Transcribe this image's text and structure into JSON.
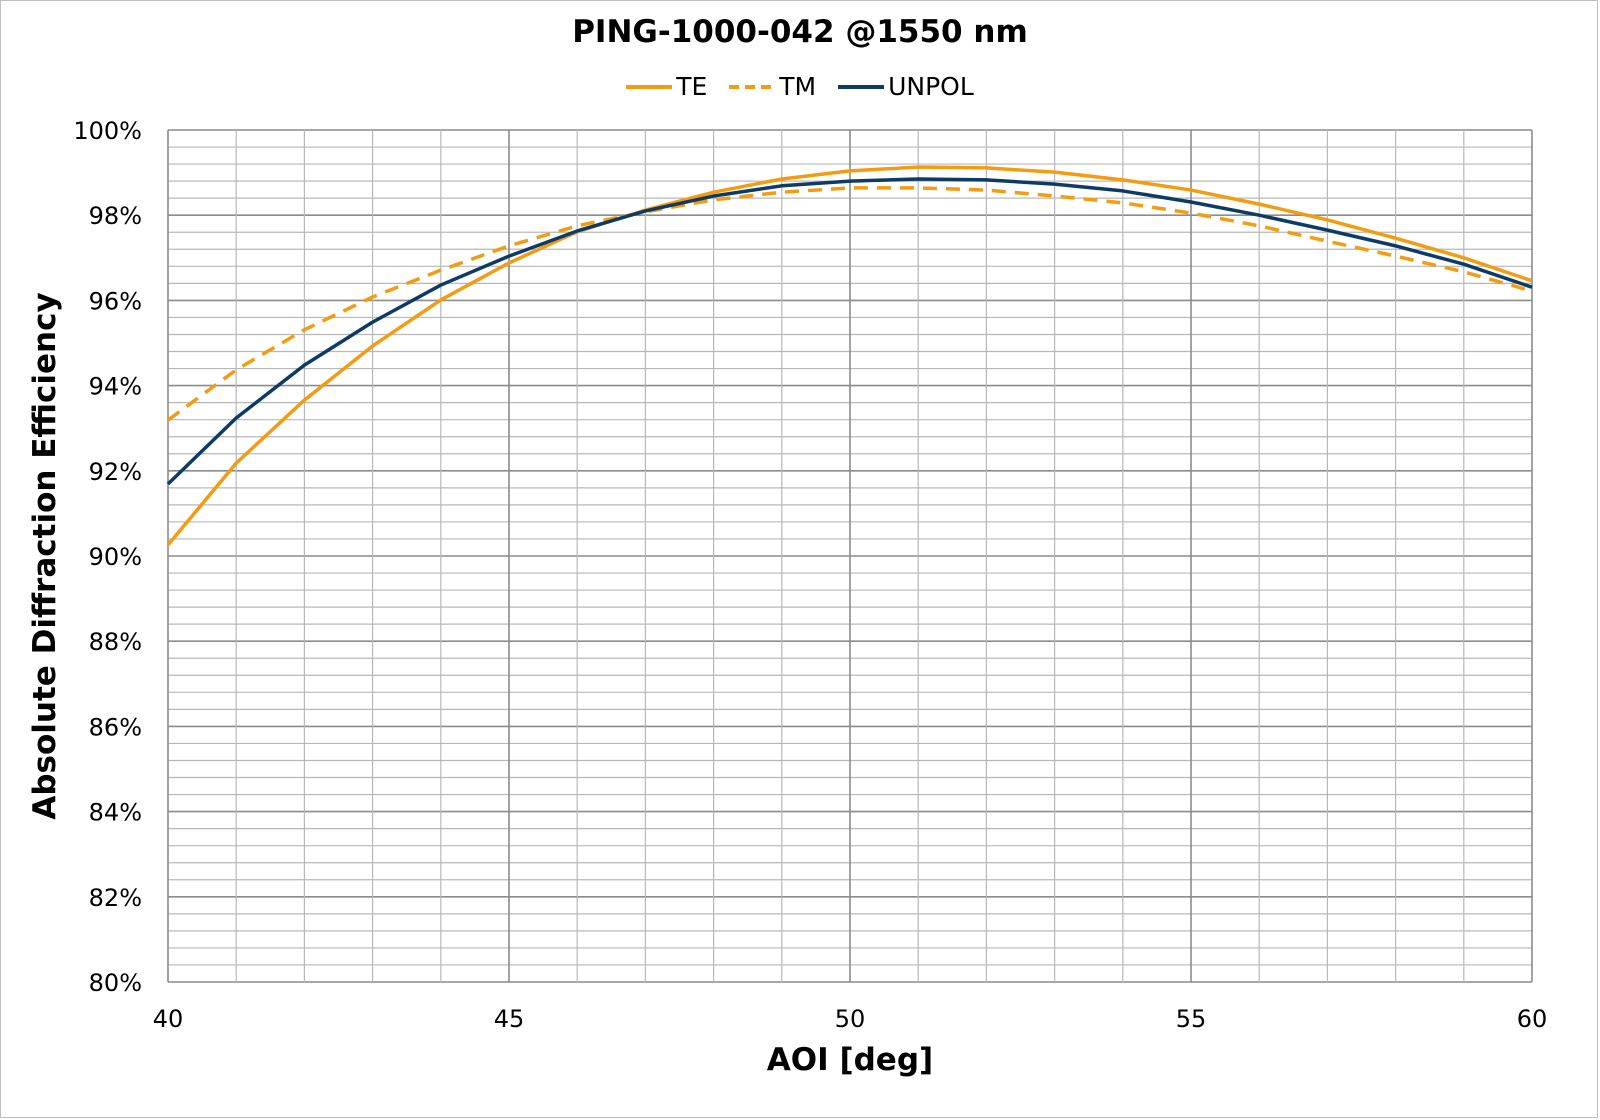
{
  "chart_data": {
    "type": "line",
    "title": "PING-1000-042 @1550 nm",
    "xlabel": "AOI [deg]",
    "ylabel": "Absolute Diffraction Efficiency",
    "xlim": [
      40,
      60
    ],
    "ylim": [
      80,
      100
    ],
    "x_ticks": [
      "40",
      "45",
      "50",
      "55",
      "60"
    ],
    "y_ticks": [
      "80%",
      "82%",
      "84%",
      "86%",
      "88%",
      "90%",
      "92%",
      "94%",
      "96%",
      "98%",
      "100%"
    ],
    "grid": true,
    "legend_position": "top",
    "x": [
      40,
      41,
      42,
      43,
      44,
      45,
      46,
      47,
      48,
      49,
      50,
      51,
      52,
      53,
      54,
      55,
      56,
      57,
      58,
      59,
      60
    ],
    "series": [
      {
        "name": "TE",
        "color": "#F39C12",
        "style": "solid",
        "values": [
          90.26,
          92.18,
          93.66,
          94.93,
          96.01,
          96.88,
          97.61,
          98.12,
          98.54,
          98.85,
          99.04,
          99.13,
          99.11,
          99.01,
          98.83,
          98.59,
          98.26,
          97.89,
          97.46,
          97.0,
          96.46
        ]
      },
      {
        "name": "TM",
        "color": "#F39C12",
        "style": "dashed",
        "values": [
          93.19,
          94.37,
          95.31,
          96.08,
          96.71,
          97.28,
          97.75,
          98.08,
          98.36,
          98.54,
          98.64,
          98.64,
          98.59,
          98.45,
          98.29,
          98.05,
          97.75,
          97.39,
          97.04,
          96.67,
          96.22
        ]
      },
      {
        "name": "UNPOL",
        "color": "#0E3A66",
        "style": "solid",
        "values": [
          91.69,
          93.24,
          94.48,
          95.49,
          96.36,
          97.04,
          97.63,
          98.1,
          98.45,
          98.69,
          98.8,
          98.85,
          98.83,
          98.73,
          98.57,
          98.31,
          98.0,
          97.65,
          97.28,
          96.85,
          96.31
        ]
      }
    ]
  }
}
